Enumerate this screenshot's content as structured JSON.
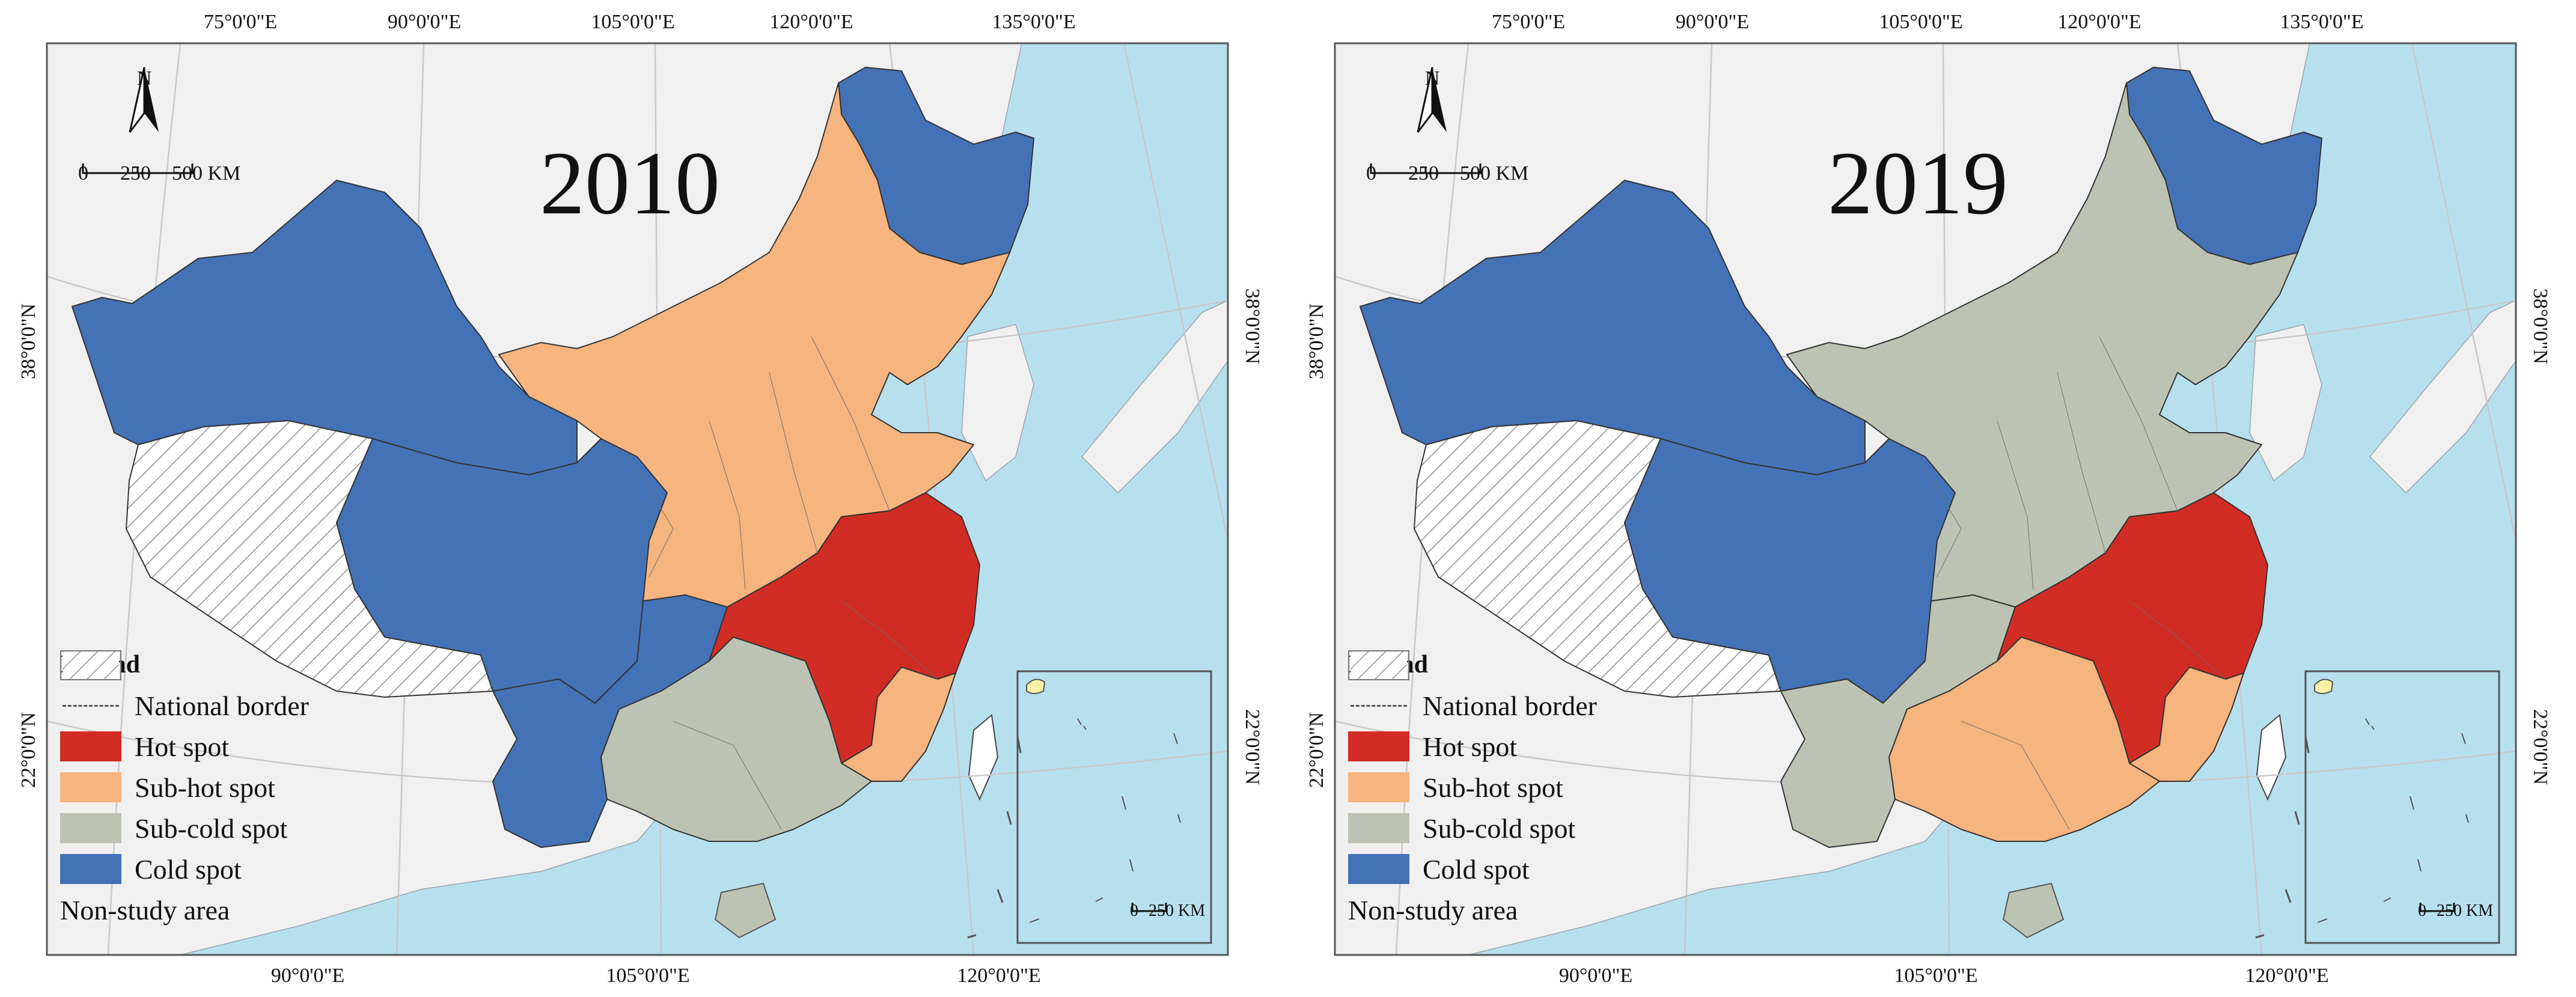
{
  "colors": {
    "hot": "#d12c24",
    "sub_hot": "#f6b47f",
    "sub_cold": "#bdc3b2",
    "cold": "#4472b7",
    "sea": "#b7e0ef",
    "land_other": "#f0f0f0",
    "non_study": "#ffffff"
  },
  "axis_ticks": {
    "top": [
      "75°0'0\"E",
      "90°0'0\"E",
      "105°0'0\"E",
      "120°0'0\"E",
      "135°0'0\"E"
    ],
    "bottom": [
      "90°0'0\"E",
      "105°0'0\"E",
      "120°0'0\"E"
    ],
    "left": [
      "38°0'0\"N",
      "22°0'0\"N"
    ],
    "right": [
      "38°0'0\"N",
      "22°0'0\"N"
    ]
  },
  "north_arrow": {
    "letter": "N"
  },
  "scale_bar": {
    "labels": [
      "0",
      "250",
      "500 KM"
    ]
  },
  "inset_scale": {
    "labels": [
      "0",
      "250 KM"
    ]
  },
  "legend": {
    "title": "Legend",
    "items": [
      {
        "key": "border",
        "label": "National border"
      },
      {
        "key": "hot",
        "label": "Hot spot"
      },
      {
        "key": "sub_hot",
        "label": "Sub-hot spot"
      },
      {
        "key": "sub_cold",
        "label": "Sub-cold spot"
      },
      {
        "key": "cold",
        "label": "Cold spot"
      },
      {
        "key": "non_study",
        "label": "Non-study area"
      }
    ]
  },
  "maps": [
    {
      "year": "2010",
      "regions": {
        "northeast_top": "cold",
        "west": "cold",
        "southwest": "cold",
        "qinghai_gansu": "cold",
        "north": "sub_hot",
        "central": "hot",
        "southeast_coast": "sub_hot",
        "south": "sub_cold",
        "tibet": "non_study"
      }
    },
    {
      "year": "2019",
      "regions": {
        "northeast_top": "cold",
        "west": "cold",
        "southwest": "sub_cold",
        "qinghai_gansu": "cold",
        "north": "sub_cold",
        "central": "hot",
        "southeast_coast": "sub_hot",
        "south": "sub_hot",
        "tibet": "non_study"
      }
    }
  ]
}
